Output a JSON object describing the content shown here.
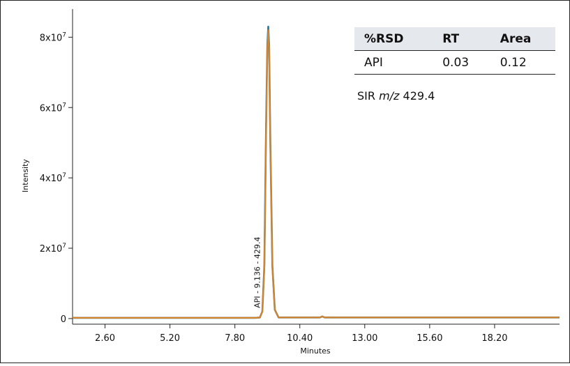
{
  "chart_data": {
    "type": "line",
    "xlabel": "Minutes",
    "ylabel": "Intensity",
    "xlim": [
      1.3,
      20.8
    ],
    "ylim": [
      -1600000,
      88000000
    ],
    "x_ticks": [
      2.6,
      5.2,
      7.8,
      10.4,
      13.0,
      15.6,
      18.2
    ],
    "x_tick_labels": [
      "2.60",
      "5.20",
      "7.80",
      "10.40",
      "13.00",
      "15.60",
      "18.20"
    ],
    "y_ticks": [
      0,
      20000000,
      40000000,
      60000000,
      80000000
    ],
    "y_tick_labels": [
      {
        "base": "0",
        "exp": ""
      },
      {
        "base": "2x10",
        "exp": "7"
      },
      {
        "base": "4x10",
        "exp": "7"
      },
      {
        "base": "6x10",
        "exp": "7"
      },
      {
        "base": "8x10",
        "exp": "7"
      }
    ],
    "grid": false,
    "series": [
      {
        "color": "#1f7fa8",
        "x": [
          1.3,
          8.6,
          8.8,
          8.9,
          8.98,
          9.05,
          9.1,
          9.136,
          9.17,
          9.22,
          9.3,
          9.4,
          9.55,
          11.2,
          11.3,
          11.4,
          20.8
        ],
        "y": [
          200000,
          200000,
          300000,
          2000000,
          15000000,
          55000000,
          78000000,
          83000000,
          78000000,
          50000000,
          15000000,
          2500000,
          300000,
          300000,
          600000,
          300000,
          300000
        ]
      },
      {
        "color": "#d8822a",
        "x": [
          1.3,
          8.6,
          8.8,
          8.9,
          8.98,
          9.05,
          9.1,
          9.136,
          9.17,
          9.22,
          9.3,
          9.4,
          9.55,
          11.2,
          11.3,
          11.4,
          20.8
        ],
        "y": [
          200000,
          200000,
          300000,
          2000000,
          14500000,
          54000000,
          77000000,
          82000000,
          77000000,
          49000000,
          14500000,
          2400000,
          300000,
          300000,
          600000,
          300000,
          300000
        ]
      }
    ],
    "annotations": [
      {
        "text": "API - 9.136 - 429.4",
        "x": 9.136,
        "y": 200000,
        "rotation": -90
      }
    ]
  },
  "results_table": {
    "headers": [
      "%RSD",
      "RT",
      "Area"
    ],
    "rows": [
      [
        "API",
        "0.03",
        "0.12"
      ]
    ]
  },
  "sir_note": {
    "prefix": "SIR ",
    "mz": "m/z",
    "value": " 429.4"
  }
}
